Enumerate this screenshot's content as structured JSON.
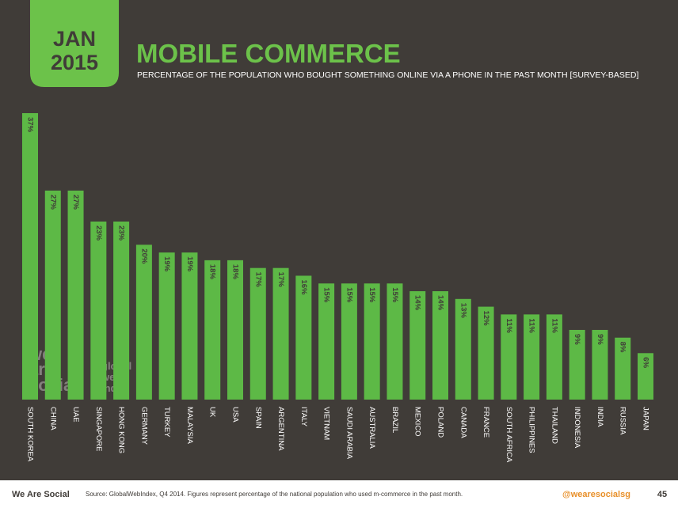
{
  "chart_data": {
    "type": "bar",
    "badge": [
      "JAN",
      "2015"
    ],
    "title": "MOBILE COMMERCE",
    "subtitle": "PERCENTAGE OF THE POPULATION WHO BOUGHT SOMETHING ONLINE VIA A PHONE IN THE PAST MONTH [SURVEY-BASED]",
    "categories": [
      "SOUTH KOREA",
      "CHINA",
      "UAE",
      "SINGAPORE",
      "HONG KONG",
      "GERMANY",
      "TURKEY",
      "MALAYSIA",
      "UK",
      "USA",
      "SPAIN",
      "ARGENTINA",
      "ITALY",
      "VIETNAM",
      "SAUDI ARABIA",
      "AUSTRALIA",
      "BRAZIL",
      "MEXICO",
      "POLAND",
      "CANADA",
      "FRANCE",
      "SOUTH AFRICA",
      "PHILIPPINES",
      "THAILAND",
      "INDONESIA",
      "INDIA",
      "RUSSIA",
      "JAPAN"
    ],
    "values": [
      37,
      27,
      27,
      23,
      23,
      20,
      19,
      19,
      18,
      18,
      17,
      17,
      16,
      15,
      15,
      15,
      15,
      14,
      14,
      13,
      12,
      11,
      11,
      11,
      9,
      9,
      8,
      6
    ],
    "value_labels": [
      "37%",
      "27%",
      "27%",
      "23%",
      "23%",
      "20%",
      "19%",
      "19%",
      "18%",
      "18%",
      "17%",
      "17%",
      "16%",
      "15%",
      "15%",
      "15%",
      "15%",
      "14%",
      "14%",
      "13%",
      "12%",
      "11%",
      "11%",
      "11%",
      "9%",
      "9%",
      "8%",
      "6%"
    ],
    "color": "#5db946",
    "watermarks": [
      "we",
      "are",
      "social",
      "global",
      "web",
      "index"
    ],
    "footer": {
      "brand": "We Are Social",
      "source": "Source: GlobalWebIndex, Q4 2014. Figures represent percentage of the national population who used m-commerce in the past month.",
      "handle": "@wearesocialsg",
      "page": "45"
    }
  }
}
